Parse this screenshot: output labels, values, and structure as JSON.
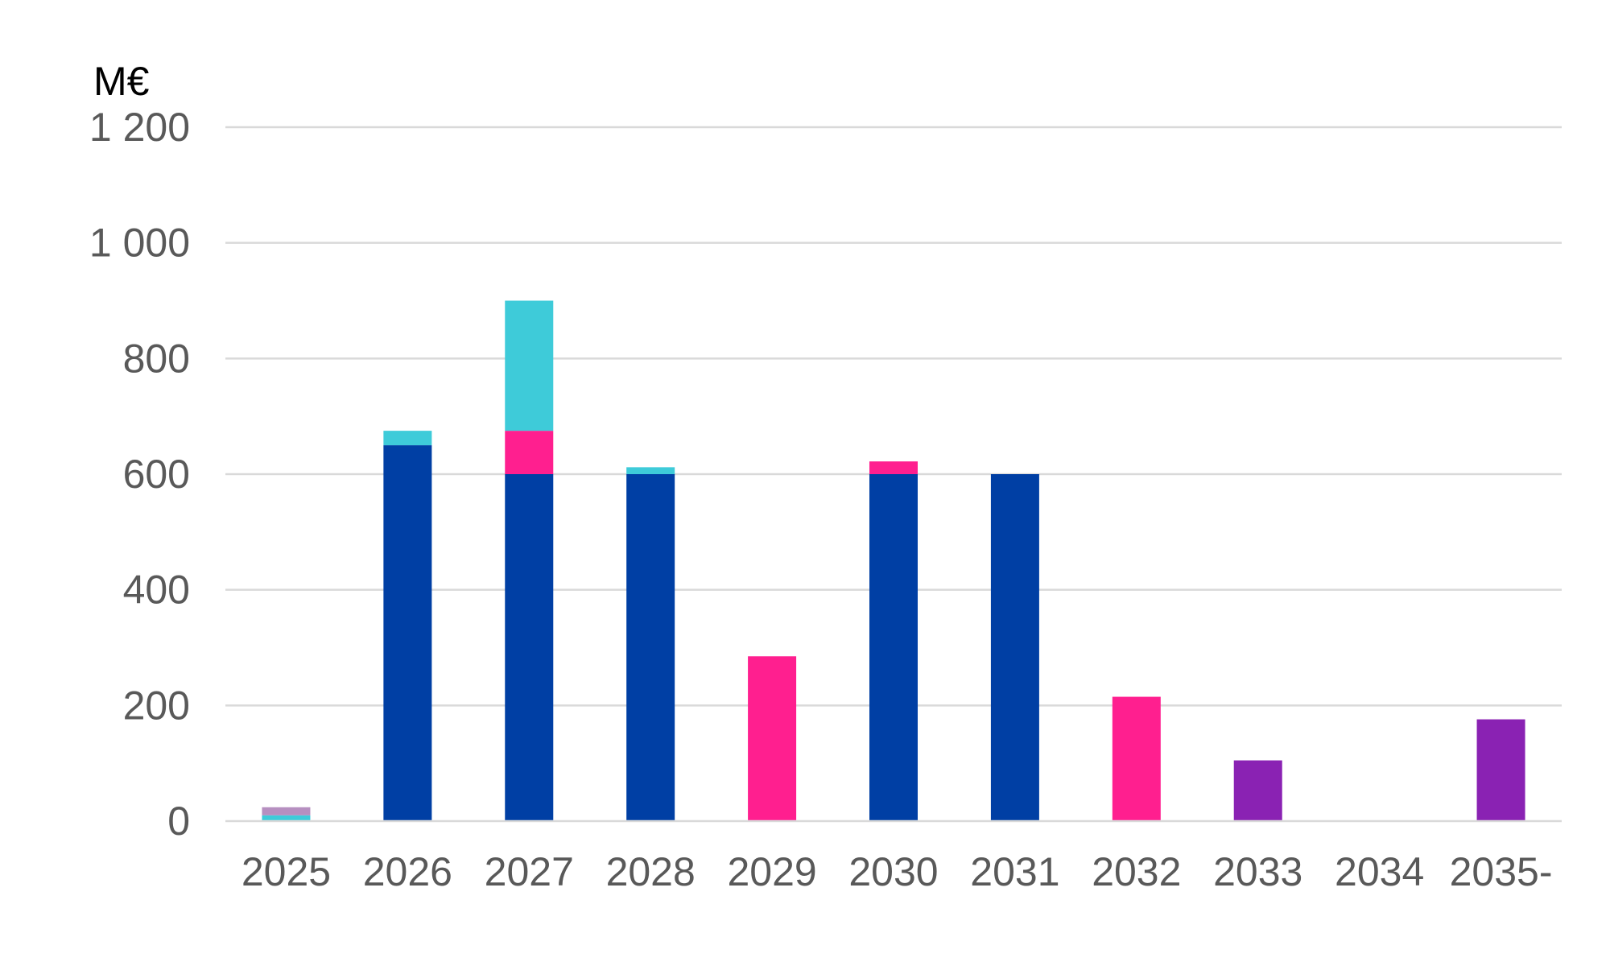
{
  "chart_data": {
    "type": "bar",
    "stacked": true,
    "ylabel": "M€",
    "ylim": [
      0,
      1200
    ],
    "y_ticks": [
      0,
      200,
      400,
      600,
      800,
      1000,
      1200
    ],
    "y_tick_labels": [
      "0",
      "200",
      "400",
      "600",
      "800",
      "1 000",
      "1 200"
    ],
    "categories": [
      "2025",
      "2026",
      "2027",
      "2028",
      "2029",
      "2030",
      "2031",
      "2032",
      "2033",
      "2034",
      "2035-"
    ],
    "grid": true,
    "legend": "none",
    "series": [
      {
        "color": "#003fa4",
        "values": [
          0,
          650,
          600,
          600,
          0,
          600,
          600,
          0,
          0,
          0,
          0
        ]
      },
      {
        "color": "#ff1f8f",
        "values": [
          0,
          0,
          75,
          0,
          285,
          22,
          0,
          215,
          0,
          0,
          0
        ]
      },
      {
        "color": "#3ecbd9",
        "values": [
          10,
          25,
          225,
          12,
          0,
          0,
          0,
          0,
          0,
          0,
          0
        ]
      },
      {
        "color": "#b68fc0",
        "values": [
          14,
          0,
          0,
          0,
          0,
          0,
          0,
          0,
          0,
          0,
          0
        ]
      },
      {
        "color": "#8a22b3",
        "values": [
          0,
          0,
          0,
          0,
          0,
          0,
          0,
          0,
          105,
          0,
          176
        ]
      }
    ]
  }
}
